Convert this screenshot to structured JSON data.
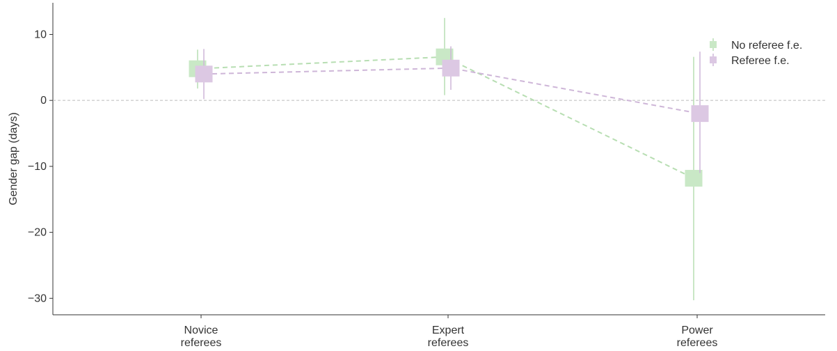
{
  "chart_data": {
    "type": "scatter",
    "title": "",
    "xlabel": "",
    "ylabel": "Gender gap (days)",
    "categories": [
      [
        "Novice",
        "referees"
      ],
      [
        "Expert",
        "referees"
      ],
      [
        "Power",
        "referees"
      ]
    ],
    "ylim": [
      -32.5,
      14.8
    ],
    "yticks": [
      10,
      0,
      -10,
      -20,
      -30
    ],
    "ytick_labels": [
      "10",
      "0",
      "−10",
      "−20",
      "−30"
    ],
    "reference_line_y": 0,
    "grid": false,
    "legend_position": "top-right",
    "series": [
      {
        "name": "No referee f.e.",
        "color": "#c9e8c6",
        "line_color": "#b7deb2",
        "values": [
          4.8,
          6.6,
          -11.8
        ],
        "ci_low": [
          1.8,
          0.8,
          -30.3
        ],
        "ci_high": [
          7.7,
          12.5,
          6.6
        ]
      },
      {
        "name": "Referee f.e.",
        "color": "#dcc8e3",
        "line_color": "#ceb6d8",
        "values": [
          4.0,
          4.9,
          -2.0
        ],
        "ci_low": [
          0.2,
          1.6,
          -11.0
        ],
        "ci_high": [
          7.8,
          8.2,
          7.4
        ]
      }
    ]
  }
}
